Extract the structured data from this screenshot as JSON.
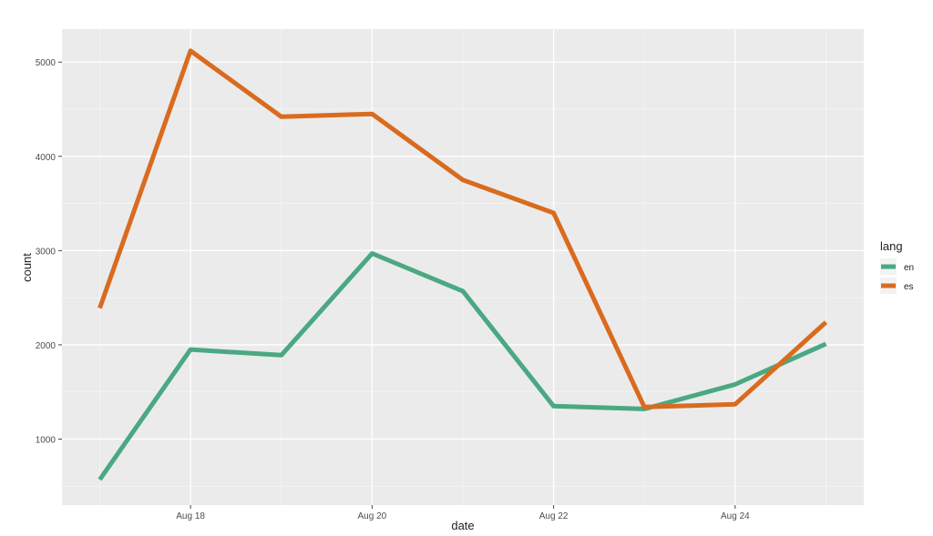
{
  "chart_data": {
    "type": "line",
    "title": "",
    "xlabel": "date",
    "ylabel": "count",
    "x": [
      "2024-08-17",
      "2024-08-18",
      "2024-08-19",
      "2024-08-20",
      "2024-08-21",
      "2024-08-22",
      "2024-08-23",
      "2024-08-24",
      "2024-08-25"
    ],
    "x_ticks": [
      {
        "value": "2024-08-18",
        "label": "Aug 18"
      },
      {
        "value": "2024-08-20",
        "label": "Aug 20"
      },
      {
        "value": "2024-08-22",
        "label": "Aug 22"
      },
      {
        "value": "2024-08-24",
        "label": "Aug 24"
      }
    ],
    "y_ticks": [
      1000,
      2000,
      3000,
      4000,
      5000
    ],
    "ylim": [
      300,
      5350
    ],
    "xlim": [
      "2024-08-16T14:00",
      "2024-08-25T10:00"
    ],
    "grid": true,
    "legend": {
      "title": "lang",
      "position": "right"
    },
    "series": [
      {
        "name": "en",
        "color": "#4aa882",
        "values": [
          570,
          1950,
          1890,
          2970,
          2570,
          1350,
          1320,
          1580,
          2010
        ]
      },
      {
        "name": "es",
        "color": "#d96b1f",
        "values": [
          2390,
          5120,
          4420,
          4450,
          3750,
          3400,
          1340,
          1370,
          2240
        ]
      }
    ]
  }
}
